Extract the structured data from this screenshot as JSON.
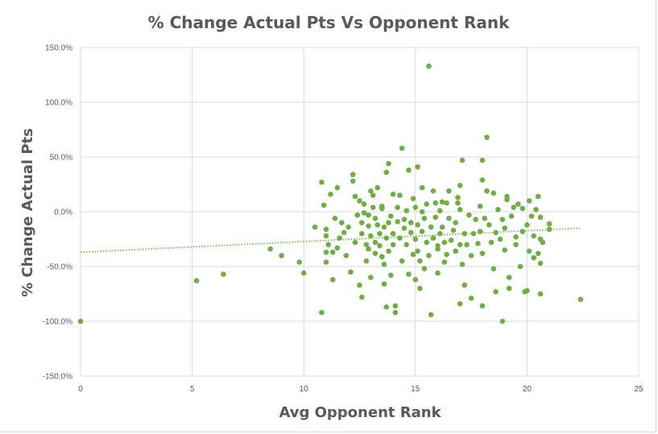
{
  "chart_data": {
    "type": "scatter",
    "title": "% Change Actual Pts Vs Opponent Rank",
    "xlabel": "Avg Opponent Rank",
    "ylabel": "% Change Actual Pts",
    "xlim": [
      0,
      25
    ],
    "ylim": [
      -150,
      150
    ],
    "x_ticks": [
      "0",
      "5",
      "10",
      "15",
      "20",
      "25"
    ],
    "y_ticks": [
      "-150.0%",
      "-100.0%",
      "-50.0%",
      "0.0%",
      "50.0%",
      "100.0%",
      "150.0%"
    ],
    "grid": true,
    "series_color": "#70ad47",
    "trendline": {
      "type": "linear",
      "style": "dotted",
      "x": [
        0,
        22.4
      ],
      "y": [
        -37,
        -15
      ]
    },
    "points": [
      [
        0,
        -100
      ],
      [
        5.2,
        -63
      ],
      [
        6.4,
        -57
      ],
      [
        8.5,
        -34
      ],
      [
        9,
        -40
      ],
      [
        9.8,
        -46
      ],
      [
        10,
        -56
      ],
      [
        10.5,
        -14
      ],
      [
        10.8,
        27
      ],
      [
        10.8,
        -92
      ],
      [
        10.9,
        6
      ],
      [
        11,
        -16
      ],
      [
        11,
        -22
      ],
      [
        11,
        -37
      ],
      [
        11,
        -46
      ],
      [
        11.1,
        -30
      ],
      [
        11.2,
        16
      ],
      [
        11.3,
        -62
      ],
      [
        11.3,
        -37
      ],
      [
        11.4,
        -6
      ],
      [
        11.5,
        -33
      ],
      [
        11.5,
        22
      ],
      [
        11.6,
        -24
      ],
      [
        11.7,
        -10
      ],
      [
        11.8,
        -19
      ],
      [
        11.9,
        -40
      ],
      [
        12,
        -14
      ],
      [
        12.1,
        -55
      ],
      [
        12.2,
        34
      ],
      [
        12.2,
        28
      ],
      [
        12.3,
        14
      ],
      [
        12.3,
        -28
      ],
      [
        12.4,
        -3
      ],
      [
        12.5,
        -67
      ],
      [
        12.5,
        10
      ],
      [
        12.6,
        -10
      ],
      [
        12.6,
        -20
      ],
      [
        12.6,
        -78
      ],
      [
        12.7,
        -1
      ],
      [
        12.7,
        7
      ],
      [
        12.8,
        -30
      ],
      [
        12.8,
        -45
      ],
      [
        12.9,
        -3
      ],
      [
        12.9,
        -13
      ],
      [
        12.9,
        -34
      ],
      [
        13,
        -22
      ],
      [
        13,
        19
      ],
      [
        13,
        -60
      ],
      [
        13.1,
        4
      ],
      [
        13.1,
        15
      ],
      [
        13.2,
        -6
      ],
      [
        13.2,
        -28
      ],
      [
        13.2,
        -38
      ],
      [
        13.3,
        22
      ],
      [
        13.3,
        -12
      ],
      [
        13.4,
        -20
      ],
      [
        13.4,
        -31
      ],
      [
        13.5,
        5
      ],
      [
        13.5,
        -41
      ],
      [
        13.5,
        3
      ],
      [
        13.6,
        -48
      ],
      [
        13.6,
        -14
      ],
      [
        13.6,
        -66
      ],
      [
        13.7,
        -24
      ],
      [
        13.7,
        -87
      ],
      [
        13.7,
        36
      ],
      [
        13.8,
        -10
      ],
      [
        13.8,
        44
      ],
      [
        13.8,
        -36
      ],
      [
        13.9,
        -58
      ],
      [
        13.9,
        -4
      ],
      [
        14,
        16
      ],
      [
        14,
        -20
      ],
      [
        14,
        -30
      ],
      [
        14.1,
        -86
      ],
      [
        14.1,
        -92
      ],
      [
        14.2,
        -9
      ],
      [
        14.2,
        4
      ],
      [
        14.3,
        15
      ],
      [
        14.3,
        -24
      ],
      [
        14.4,
        58
      ],
      [
        14.4,
        -45
      ],
      [
        14.5,
        -7
      ],
      [
        14.5,
        -15
      ],
      [
        14.6,
        1
      ],
      [
        14.6,
        -30
      ],
      [
        14.7,
        38
      ],
      [
        14.7,
        -57
      ],
      [
        14.8,
        -10
      ],
      [
        14.8,
        -19
      ],
      [
        14.9,
        12
      ],
      [
        14.9,
        -39
      ],
      [
        15,
        -62
      ],
      [
        15,
        -25
      ],
      [
        15,
        4
      ],
      [
        15.1,
        -12
      ],
      [
        15.1,
        -36
      ],
      [
        15.1,
        41
      ],
      [
        15.2,
        -45
      ],
      [
        15.2,
        -70
      ],
      [
        15.3,
        0
      ],
      [
        15.3,
        -18
      ],
      [
        15.3,
        22
      ],
      [
        15.4,
        -6
      ],
      [
        15.4,
        -52
      ],
      [
        15.5,
        -28
      ],
      [
        15.5,
        7
      ],
      [
        15.6,
        133
      ],
      [
        15.6,
        -40
      ],
      [
        15.7,
        -94
      ],
      [
        15.7,
        -14
      ],
      [
        15.8,
        -24
      ],
      [
        15.8,
        19
      ],
      [
        15.9,
        8
      ],
      [
        15.9,
        -5
      ],
      [
        16,
        -56
      ],
      [
        16,
        -31
      ],
      [
        16,
        -34
      ],
      [
        16.1,
        -20
      ],
      [
        16.1,
        1
      ],
      [
        16.2,
        9
      ],
      [
        16.2,
        -14
      ],
      [
        16.3,
        -46
      ],
      [
        16.3,
        -28
      ],
      [
        16.4,
        8
      ],
      [
        16.4,
        -39
      ],
      [
        16.5,
        19
      ],
      [
        16.5,
        -6
      ],
      [
        16.6,
        -26
      ],
      [
        16.7,
        -17
      ],
      [
        16.8,
        -36
      ],
      [
        16.8,
        -10
      ],
      [
        16.9,
        8
      ],
      [
        16.9,
        13
      ],
      [
        17,
        24
      ],
      [
        17,
        -30
      ],
      [
        17,
        -84
      ],
      [
        17,
        2
      ],
      [
        17.1,
        47
      ],
      [
        17.1,
        -48
      ],
      [
        17.2,
        -20
      ],
      [
        17.2,
        -67
      ],
      [
        17.3,
        -30
      ],
      [
        17.4,
        -3
      ],
      [
        17.5,
        -79
      ],
      [
        17.5,
        -40
      ],
      [
        17.6,
        -20
      ],
      [
        17.7,
        -7
      ],
      [
        17.8,
        -29
      ],
      [
        17.9,
        5
      ],
      [
        17.9,
        -18
      ],
      [
        18,
        47
      ],
      [
        18,
        29
      ],
      [
        18,
        -86
      ],
      [
        18,
        -38
      ],
      [
        18.1,
        -6
      ],
      [
        18.2,
        19
      ],
      [
        18.2,
        68
      ],
      [
        18.3,
        -12
      ],
      [
        18.4,
        -28
      ],
      [
        18.5,
        17
      ],
      [
        18.5,
        -52
      ],
      [
        18.6,
        -19
      ],
      [
        18.6,
        -73
      ],
      [
        18.7,
        2
      ],
      [
        18.8,
        -25
      ],
      [
        18.9,
        -7
      ],
      [
        18.9,
        -100
      ],
      [
        19,
        -35
      ],
      [
        19,
        -15
      ],
      [
        19.1,
        11
      ],
      [
        19.1,
        14
      ],
      [
        19.2,
        -60
      ],
      [
        19.2,
        -70
      ],
      [
        19.3,
        -4
      ],
      [
        19.4,
        4
      ],
      [
        19.5,
        -23
      ],
      [
        19.5,
        -30
      ],
      [
        19.6,
        7
      ],
      [
        19.7,
        -50
      ],
      [
        19.8,
        -18
      ],
      [
        19.8,
        3
      ],
      [
        19.9,
        -73
      ],
      [
        20,
        -12
      ],
      [
        20,
        -72
      ],
      [
        20.1,
        -36
      ],
      [
        20.1,
        10
      ],
      [
        20.2,
        -4
      ],
      [
        20.3,
        -42
      ],
      [
        20.3,
        -22
      ],
      [
        20.4,
        2
      ],
      [
        20.5,
        -38
      ],
      [
        20.5,
        14
      ],
      [
        20.6,
        -75
      ],
      [
        20.6,
        -25
      ],
      [
        20.6,
        -47
      ],
      [
        20.6,
        -5
      ],
      [
        20.7,
        -28
      ],
      [
        21,
        -16
      ],
      [
        21,
        -11
      ],
      [
        22.4,
        -80
      ]
    ]
  }
}
